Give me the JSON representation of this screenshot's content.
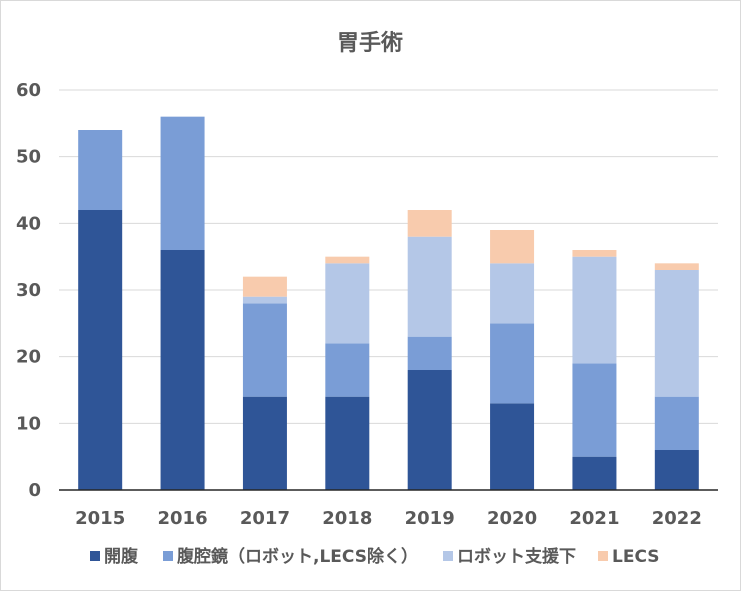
{
  "chart_data": {
    "type": "bar",
    "stacked": true,
    "title": "胃手術",
    "categories": [
      "2015",
      "2016",
      "2017",
      "2018",
      "2019",
      "2020",
      "2021",
      "2022"
    ],
    "series": [
      {
        "name": "開腹",
        "color": "#2f5597",
        "values": [
          42,
          36,
          14,
          14,
          18,
          13,
          5,
          6
        ]
      },
      {
        "name": "腹腔鏡（ロボット,LECS除く）",
        "color": "#7a9dd6",
        "values": [
          12,
          20,
          14,
          8,
          5,
          12,
          14,
          8
        ]
      },
      {
        "name": "ロボット支援下",
        "color": "#b4c7e7",
        "values": [
          0,
          0,
          1,
          12,
          15,
          9,
          16,
          19
        ]
      },
      {
        "name": "LECS",
        "color": "#f8cbad",
        "values": [
          0,
          0,
          3,
          1,
          4,
          5,
          1,
          1
        ]
      }
    ],
    "ylim": [
      0,
      60
    ],
    "yticks": [
      "0",
      "10",
      "20",
      "30",
      "40",
      "50",
      "60"
    ],
    "grid": true,
    "legend": "bottom"
  }
}
